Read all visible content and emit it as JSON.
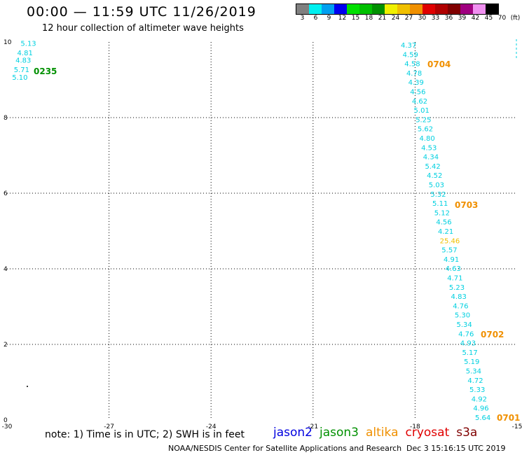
{
  "header": {
    "title": "00:00 — 11:59 UTC 11/26/2019",
    "subtitle": "12 hour collection of altimeter wave heights"
  },
  "colorbar": {
    "colors": [
      "#808080",
      "#00f0f0",
      "#00a0f0",
      "#0000f0",
      "#00e000",
      "#00c000",
      "#009000",
      "#f0f000",
      "#f0c000",
      "#f09000",
      "#e00000",
      "#b00000",
      "#800000",
      "#a00080",
      "#f090f0",
      "#000000"
    ],
    "labels": [
      "3",
      "6",
      "9",
      "12",
      "15",
      "18",
      "21",
      "24",
      "27",
      "30",
      "33",
      "36",
      "39",
      "42",
      "45",
      "70",
      "(ft)"
    ]
  },
  "chart_data": {
    "type": "scatter",
    "xlim": [
      -30,
      -15
    ],
    "ylim": [
      0,
      10
    ],
    "xticks": [
      "-30",
      "-27",
      "-24",
      "-21",
      "-18",
      "-15"
    ],
    "yticks": [
      "0",
      "2",
      "4",
      "6",
      "8",
      "10"
    ],
    "grid": true,
    "tracks": [
      {
        "satellite": "jason3",
        "time_label": "0235",
        "values": [
          {
            "x": -29.6,
            "y": 9.9,
            "v": "5.13"
          },
          {
            "x": -29.7,
            "y": 9.65,
            "v": "4.81"
          },
          {
            "x": -29.75,
            "y": 9.45,
            "v": "4.83"
          },
          {
            "x": -29.8,
            "y": 9.2,
            "v": "5.71"
          },
          {
            "x": -29.85,
            "y": 9.0,
            "v": "5.10"
          }
        ]
      },
      {
        "satellite": "altika",
        "time_labels": [
          {
            "label": "0704",
            "at": 4.58
          },
          {
            "label": "0703",
            "at": 5.11
          },
          {
            "label": "0702",
            "at": 4.76
          },
          {
            "label": "0701",
            "at": null
          }
        ],
        "values": [
          "4.37",
          "4.59",
          "4.58",
          "4.78",
          "4.39",
          "4.56",
          "4.62",
          "5.01",
          "5.25",
          "5.62",
          "4.80",
          "4.53",
          "4.34",
          "5.42",
          "4.52",
          "5.03",
          "5.32",
          "5.11",
          "5.12",
          "4.56",
          "4.21",
          "25.46",
          "5.57",
          "4.91",
          "4.63",
          "4.71",
          "5.23",
          "4.83",
          "4.76",
          "5.30",
          "5.34",
          "4.76",
          "4.93",
          "5.17",
          "5.19",
          "5.34",
          "4.72",
          "5.33",
          "4.92",
          "4.96",
          "5.64"
        ]
      }
    ]
  },
  "footer": {
    "note": "note: 1) Time is in UTC; 2) SWH is in feet",
    "legend": [
      {
        "name": "jason2",
        "color": "#0000e0"
      },
      {
        "name": "jason3",
        "color": "#009000"
      },
      {
        "name": "altika",
        "color": "#f09000"
      },
      {
        "name": "cryosat",
        "color": "#e00000"
      },
      {
        "name": "s3a",
        "color": "#800000"
      }
    ],
    "credit": "NOAA/NESDIS Center for Satellite Applications and Research",
    "timestamp": "Dec  3 15:16:15 UTC 2019"
  }
}
